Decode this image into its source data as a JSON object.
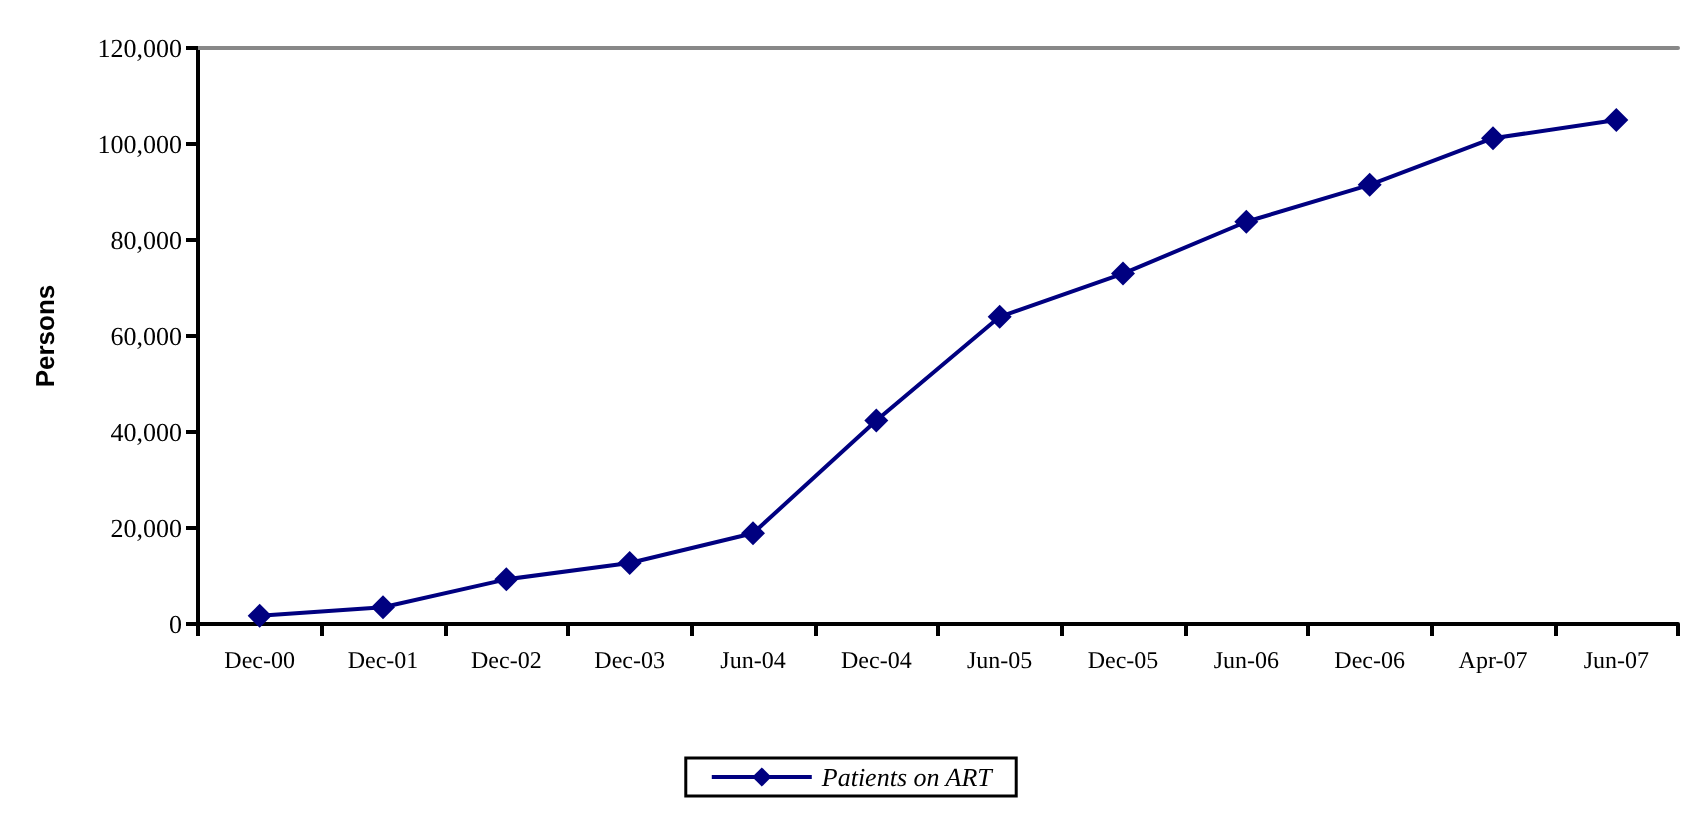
{
  "chart_data": {
    "type": "line",
    "ylabel": "Persons",
    "categories": [
      "Dec-00",
      "Dec-01",
      "Dec-02",
      "Dec-03",
      "Jun-04",
      "Dec-04",
      "Jun-05",
      "Dec-05",
      "Jun-06",
      "Dec-06",
      "Apr-07",
      "Jun-07"
    ],
    "series": [
      {
        "name": "Patients on ART",
        "color": "#000080",
        "values": [
          1700,
          3500,
          9300,
          12700,
          18900,
          42400,
          64000,
          73000,
          83800,
          91500,
          101200,
          105000
        ]
      }
    ],
    "ylim": [
      0,
      120000
    ],
    "yticks": [
      {
        "value": 0,
        "label": "0"
      },
      {
        "value": 20000,
        "label": "20,000"
      },
      {
        "value": 40000,
        "label": "40,000"
      },
      {
        "value": 60000,
        "label": "60,000"
      },
      {
        "value": 80000,
        "label": "80,000"
      },
      {
        "value": 100000,
        "label": "100,000"
      },
      {
        "value": 120000,
        "label": "120,000"
      }
    ],
    "marker": "diamond",
    "line_style": "solid",
    "legend": "bottom"
  }
}
